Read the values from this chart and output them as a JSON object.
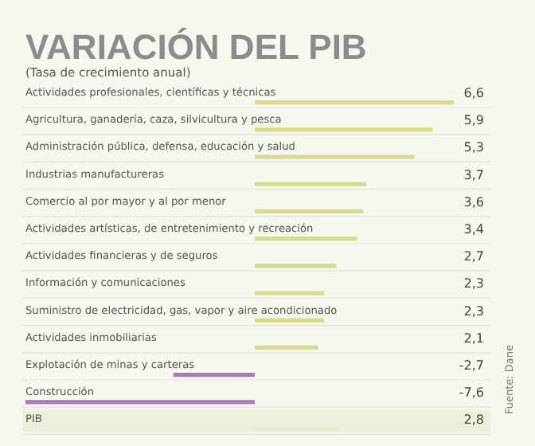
{
  "chart_data": {
    "type": "bar",
    "orientation": "horizontal",
    "title": "VARIACIÓN DEL PIB",
    "subtitle": "(Tasa de crecimiento anual)",
    "categories": [
      "Actividades profesionales, científicas y técnicas",
      "Agricultura, ganadería, caza, silvicultura y pesca",
      "Administración pública, defensa, educación y salud",
      "Industrias manufactureras",
      "Comercio al por mayor y al por menor",
      "Actividades artísticas, de entretenimiento y recreación",
      "Actividades financieras y de seguros",
      "Información y comunicaciones",
      "Suministro de electricidad, gas, vapor y aire acondicionado",
      "Actividades inmobiliarias",
      "Explotación de minas y carteras",
      "Construcción",
      "PIB"
    ],
    "values": [
      6.6,
      5.9,
      5.3,
      3.7,
      3.6,
      3.4,
      2.7,
      2.3,
      2.3,
      2.1,
      -2.7,
      -7.6,
      2.8
    ],
    "value_labels": [
      "6,6",
      "5,9",
      "5,3",
      "3,7",
      "3,6",
      "3,4",
      "2,7",
      "2,3",
      "2,3",
      "2,1",
      "-2,7",
      "-7,6",
      "2,8"
    ],
    "colors": [
      "#d6dc8e",
      "#d6dc8e",
      "#d6dc8e",
      "#d6dc8e",
      "#d6dc8e",
      "#d6dc8e",
      "#d6dc8e",
      "#d6dc8e",
      "#d6dc8e",
      "#d6dc8e",
      "#a77db3",
      "#a77db3",
      "#e8ebcf"
    ],
    "xlim": [
      -7.6,
      6.6
    ],
    "tick_labels": false,
    "annotations": [
      "Fuente: Dane"
    ]
  }
}
